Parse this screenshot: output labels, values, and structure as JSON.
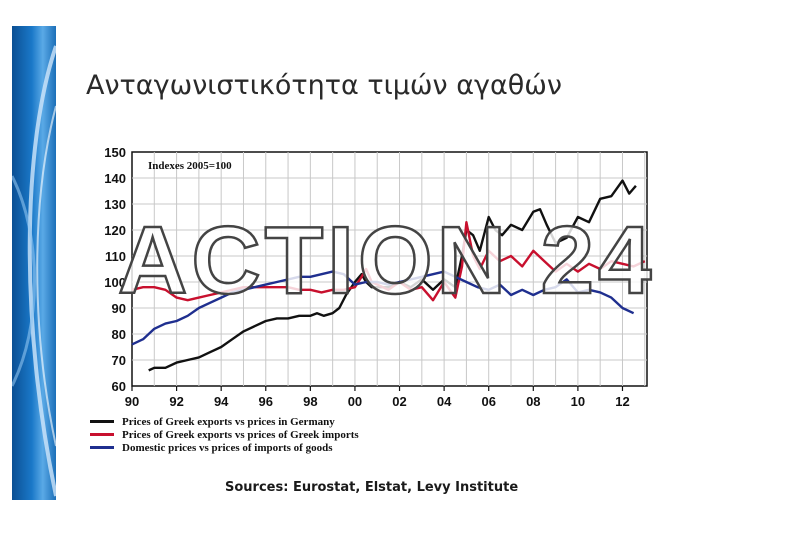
{
  "slide": {
    "title": "Ανταγωνιστικότητα τιμών αγαθών",
    "sources": "Sources: Eurostat, Elstat, Levy Institute",
    "watermark": "ACTION 24"
  },
  "colors": {
    "black": "#111111",
    "red": "#c8102e",
    "blue": "#1f2f8f",
    "grid": "#c8c8c8"
  },
  "chart_data": {
    "type": "line",
    "annotation": "Indexes 2005=100",
    "xlim": [
      1990,
      2013.1
    ],
    "ylim": [
      60,
      150
    ],
    "yticks": [
      60,
      70,
      80,
      90,
      100,
      110,
      120,
      130,
      140,
      150
    ],
    "xticks": [
      {
        "value": 1990,
        "label": "90"
      },
      {
        "value": 1992,
        "label": "92"
      },
      {
        "value": 1994,
        "label": "94"
      },
      {
        "value": 1996,
        "label": "96"
      },
      {
        "value": 1998,
        "label": "98"
      },
      {
        "value": 2000,
        "label": "00"
      },
      {
        "value": 2002,
        "label": "02"
      },
      {
        "value": 2004,
        "label": "04"
      },
      {
        "value": 2006,
        "label": "06"
      },
      {
        "value": 2008,
        "label": "08"
      },
      {
        "value": 2010,
        "label": "10"
      },
      {
        "value": 2012,
        "label": "12"
      }
    ],
    "grid": true,
    "legend_position": "bottom-left",
    "series": [
      {
        "name": "Prices of Greek exports vs prices in Germany",
        "color": "#111111",
        "x": [
          1990.75,
          1991.0,
          1991.5,
          1992.0,
          1992.5,
          1993.0,
          1993.5,
          1994.0,
          1994.5,
          1995.0,
          1995.5,
          1996.0,
          1996.5,
          1997.0,
          1997.5,
          1998.0,
          1998.3,
          1998.6,
          1999.0,
          1999.3,
          1999.6,
          2000.0,
          2000.3,
          2000.5,
          2000.75,
          2001.0,
          2001.5,
          2002.0,
          2002.5,
          2003.0,
          2003.5,
          2004.0,
          2004.5,
          2004.8,
          2005.0,
          2005.3,
          2005.6,
          2006.0,
          2006.3,
          2006.6,
          2007.0,
          2007.5,
          2008.0,
          2008.3,
          2008.6,
          2009.0,
          2009.5,
          2010.0,
          2010.5,
          2011.0,
          2011.5,
          2012.0,
          2012.3,
          2012.6
        ],
        "y": [
          66,
          67,
          67,
          69,
          70,
          71,
          73,
          75,
          78,
          81,
          83,
          85,
          86,
          86,
          87,
          87,
          88,
          87,
          88,
          90,
          95,
          100,
          103,
          100,
          98,
          98,
          98,
          100,
          98,
          101,
          97,
          101,
          98,
          110,
          120,
          118,
          112,
          125,
          120,
          118,
          122,
          120,
          127,
          128,
          122,
          115,
          117,
          125,
          123,
          132,
          133,
          139,
          134,
          137
        ]
      },
      {
        "name": "Prices of Greek exports vs prices of Greek imports",
        "color": "#c8102e",
        "x": [
          1990.0,
          1990.5,
          1991.0,
          1991.5,
          1992.0,
          1992.5,
          1993.0,
          1993.5,
          1994.0,
          1994.5,
          1995.0,
          1995.5,
          1996.0,
          1996.5,
          1997.0,
          1997.5,
          1998.0,
          1998.5,
          1999.0,
          1999.5,
          2000.0,
          2000.3,
          2000.5,
          2000.75,
          2001.0,
          2001.5,
          2002.0,
          2002.5,
          2003.0,
          2003.5,
          2004.0,
          2004.5,
          2004.8,
          2005.0,
          2005.3,
          2005.6,
          2006.0,
          2006.5,
          2007.0,
          2007.5,
          2008.0,
          2008.5,
          2009.0,
          2009.5,
          2010.0,
          2010.5,
          2011.0,
          2011.5,
          2012.0,
          2012.5,
          2013.0
        ],
        "y": [
          97,
          98,
          98,
          97,
          94,
          93,
          94,
          95,
          96,
          97,
          98,
          98,
          98,
          98,
          98,
          97,
          97,
          96,
          97,
          97,
          98,
          102,
          105,
          100,
          99,
          97,
          100,
          97,
          98,
          93,
          100,
          94,
          106,
          123,
          110,
          105,
          112,
          108,
          110,
          106,
          112,
          108,
          104,
          107,
          104,
          107,
          105,
          108,
          107,
          106,
          108
        ]
      },
      {
        "name": "Domestic prices vs prices of imports of goods",
        "color": "#1f2f8f",
        "x": [
          1990.0,
          1990.5,
          1991.0,
          1991.5,
          1992.0,
          1992.5,
          1993.0,
          1993.5,
          1994.0,
          1994.5,
          1995.0,
          1995.5,
          1996.0,
          1996.5,
          1997.0,
          1997.5,
          1998.0,
          1998.5,
          1999.0,
          1999.5,
          2000.0,
          2000.5,
          2001.0,
          2001.5,
          2002.0,
          2002.5,
          2003.0,
          2003.5,
          2004.0,
          2004.5,
          2005.0,
          2005.5,
          2006.0,
          2006.5,
          2007.0,
          2007.5,
          2008.0,
          2008.5,
          2009.0,
          2009.5,
          2010.0,
          2010.5,
          2011.0,
          2011.5,
          2012.0,
          2012.5
        ],
        "y": [
          76,
          78,
          82,
          84,
          85,
          87,
          90,
          92,
          94,
          96,
          97,
          98,
          99,
          100,
          101,
          102,
          102,
          103,
          104,
          103,
          99,
          100,
          100,
          99,
          100,
          101,
          102,
          103,
          104,
          102,
          100,
          98,
          97,
          99,
          95,
          97,
          95,
          97,
          98,
          101,
          96,
          97,
          96,
          94,
          90,
          88
        ]
      }
    ]
  }
}
